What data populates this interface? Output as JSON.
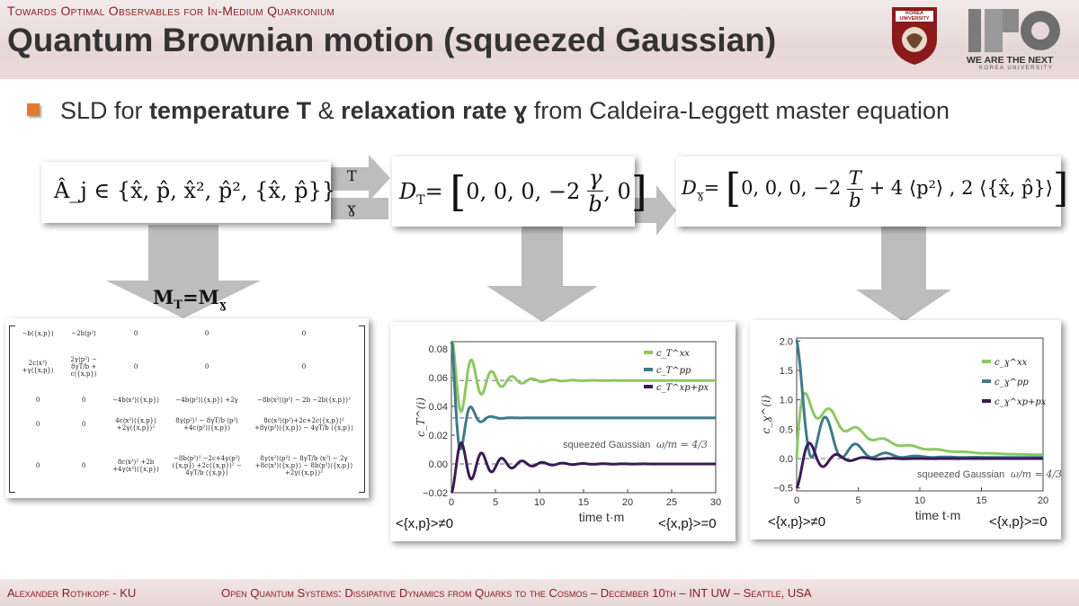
{
  "header": {
    "subtitle": "Towards Optimal Observables for In-Medium Quarkonium",
    "title": "Quantum Brownian motion (squeezed Gaussian)",
    "logo1_text": "KOREA UNIVERSITY",
    "logo2_line1": "WE ARE THE NEXT",
    "logo2_line2": "KOREA UNIVERSITY"
  },
  "bullet": {
    "prefix": "SLD for ",
    "bold1": "temperature T",
    "mid": " & ",
    "bold2": "relaxation rate ɣ",
    "suffix": " from Caldeira-Leggett master equation"
  },
  "equations": {
    "aj": "Â_j ∈ {x̂, p̂, x̂², p̂², {x̂, p̂}}",
    "arrow_T": "T",
    "arrow_g": "ɣ",
    "dt_lhs": "D",
    "dt_sub": "T",
    "dt_rhs": "0, 0, 0, −2",
    "dt_frac_num": "γ",
    "dt_frac_den": "b",
    "dt_tail": ", 0",
    "dg_lhs": "D",
    "dg_sub": "ɣ",
    "dg_rhs": "0, 0, 0, −2",
    "dg_frac_num": "T",
    "dg_frac_den": "b",
    "dg_tail": " + 4 ⟨p²⟩ , 2 ⟨{x̂, p̂}⟩",
    "m_label": "M",
    "m_sub1": "T",
    "m_eq": "=M",
    "m_sub2": "ɣ"
  },
  "matrix": [
    [
      "−b⟨{x,p}⟩",
      "−2b⟨p²⟩",
      "0",
      "0",
      "0"
    ],
    [
      "2c⟨x²⟩ +γ⟨{x,p}⟩",
      "2γ⟨p²⟩ − 8γT/b + c⟨{x,p}⟩",
      "0",
      "0",
      "0"
    ],
    [
      "0",
      "0",
      "−4b⟨x²⟩⟨{x,p}⟩",
      "−4b⟨p²⟩⟨{x,p}⟩ +2γ",
      "−8b⟨x²⟩⟨p²⟩ − 2b −2b⟨{x,p}⟩²"
    ],
    [
      "0",
      "0",
      "4c⟨x²⟩⟨{x,p}⟩ +2γ⟨{x,p}⟩²",
      "8γ⟨p²⟩² − 8γT/b ⟨p²⟩ +4c⟨p²⟩⟨{x,p}⟩",
      "8c⟨x²⟩⟨p²⟩+2c+2c⟨{x,p}⟩² +8γ⟨p²⟩⟨{x,p}⟩ − 4γT/b ⟨{x,p}⟩"
    ],
    [
      "0",
      "0",
      "8c⟨x²⟩² +2b +4γ⟨x²⟩⟨{x,p}⟩",
      "−8b⟨p²⟩² −2c+4γ⟨p²⟩⟨{x,p}⟩ +2c⟨{x,p}⟩² − 4γT/b ⟨{x,p}⟩",
      "8γ⟨x²⟩⟨p²⟩ − 8γT/b ⟨x²⟩ − 2γ +8c⟨x²⟩⟨{x,p}⟩ − 8b⟨p²⟩⟨{x,p}⟩ +2γ⟨{x,p}⟩²"
    ]
  ],
  "annotations": {
    "left1": "<{x,p}>≠0",
    "right1": "<{x,p}>=0",
    "left2": "<{x,p}>≠0",
    "right2": "<{x,p}>=0"
  },
  "chart_data": [
    {
      "type": "line",
      "xlabel": "time t·m",
      "ylabel": "c_T^(i)",
      "xlim": [
        0,
        30
      ],
      "ylim": [
        -0.02,
        0.085
      ],
      "xticks": [
        0,
        5,
        10,
        15,
        20,
        25,
        30
      ],
      "yticks": [
        -0.02,
        0.0,
        0.02,
        0.04,
        0.06,
        0.08
      ],
      "ytick_labels": [
        "−0.02",
        "0.00",
        "0.02",
        "0.04",
        "0.06",
        "0.08"
      ],
      "annotation": "squeezed Gaussian",
      "annotation_frac": "ω/m = 4/3",
      "legend_placement": "right",
      "series": [
        {
          "name": "c_T^xx",
          "color": "#8cc863",
          "asymptote": 0.058,
          "start": 0.09,
          "amp": 0.03,
          "decay": 0.35,
          "period": 2.3
        },
        {
          "name": "c_T^pp",
          "color": "#3f7a8a",
          "asymptote": 0.032,
          "start": 0.09,
          "amp": 0.05,
          "decay": 0.9,
          "period": 2.3
        },
        {
          "name": "c_T^xp+px",
          "color": "#3b1a55",
          "asymptote": 0.0,
          "start": -0.02,
          "amp": 0.02,
          "decay": 0.28,
          "period": 2.3
        }
      ],
      "asymptote_lines": [
        0.058,
        0.032,
        0.0
      ]
    },
    {
      "type": "line",
      "xlabel": "time t·m",
      "ylabel": "c_ɣ^(i)",
      "xlim": [
        0,
        20
      ],
      "ylim": [
        -0.55,
        2.05
      ],
      "xticks": [
        0,
        5,
        10,
        15,
        20
      ],
      "yticks": [
        -0.5,
        0.0,
        0.5,
        1.0,
        1.5,
        2.0
      ],
      "ytick_labels": [
        "−0.5",
        "0.0",
        "0.5",
        "1.0",
        "1.5",
        "2.0"
      ],
      "annotation": "squeezed Gaussian",
      "annotation_frac": "ω/m = 4/3",
      "legend_placement": "top-right",
      "series": [
        {
          "name": "c_ɣ^xx",
          "color": "#8cc863"
        },
        {
          "name": "c_ɣ^pp",
          "color": "#3f7a8a"
        },
        {
          "name": "c_ɣ^xp+px",
          "color": "#3b1a55"
        }
      ],
      "asymptote_lines": [
        0.0
      ]
    }
  ],
  "footer": {
    "left": "Alexander Rothkopf - KU",
    "right": "Open Quantum Systems: Dissipative Dynamics from Quarks to the Cosmos – December 10th – INT UW – Seattle, USA"
  },
  "colors": {
    "accent": "#8b1a1a",
    "bullet": "#e07a2c",
    "arrow": "#bdbdbd"
  }
}
